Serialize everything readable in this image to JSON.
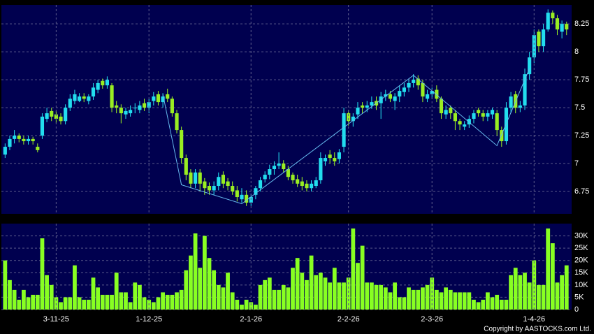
{
  "chart_data": [
    {
      "type": "candlestick",
      "up_color": "#22ddee",
      "down_color": "#99ee22",
      "open": [
        7.08,
        7.15,
        7.22,
        7.25,
        7.22,
        7.2,
        7.22,
        7.15,
        7.25,
        7.4,
        7.47,
        7.44,
        7.42,
        7.38,
        7.5,
        7.56,
        7.56,
        7.6,
        7.56,
        7.6,
        7.66,
        7.74,
        7.7,
        7.7,
        7.52,
        7.5,
        7.44,
        7.45,
        7.5,
        7.48,
        7.54,
        7.5,
        7.56,
        7.62,
        7.55,
        7.62,
        7.58,
        7.45,
        7.3,
        7.05,
        6.92,
        6.82,
        6.92,
        6.84,
        6.8,
        6.76,
        6.8,
        6.9,
        6.84,
        6.8,
        6.76,
        6.68,
        6.72,
        6.65,
        6.72,
        6.78,
        6.86,
        6.9,
        6.95,
        6.98,
        7.0,
        6.95,
        6.9,
        6.86,
        6.84,
        6.82,
        6.78,
        6.8,
        6.85,
        7.02,
        7.08,
        7.05,
        7.04,
        7.15,
        7.45,
        7.38,
        7.44,
        7.52,
        7.5,
        7.52,
        7.56,
        7.54,
        7.6,
        7.62,
        7.56,
        7.6,
        7.64,
        7.68,
        7.72,
        7.76,
        7.72,
        7.58,
        7.62,
        7.66,
        7.58,
        7.44,
        7.5,
        7.45,
        7.38,
        7.33,
        7.35,
        7.4,
        7.48,
        7.45,
        7.42,
        7.44,
        7.45,
        7.3,
        7.2,
        7.5,
        7.62,
        7.5,
        7.52,
        7.8,
        7.95,
        8.18,
        8.05,
        8.2,
        8.35,
        8.3,
        8.18,
        8.25
      ],
      "high": [
        7.18,
        7.25,
        7.3,
        7.27,
        7.25,
        7.25,
        7.24,
        7.18,
        7.45,
        7.5,
        7.5,
        7.47,
        7.45,
        7.53,
        7.62,
        7.66,
        7.63,
        7.63,
        7.62,
        7.72,
        7.75,
        7.76,
        7.78,
        7.72,
        7.56,
        7.53,
        7.5,
        7.52,
        7.54,
        7.56,
        7.58,
        7.58,
        7.64,
        7.65,
        7.63,
        7.67,
        7.6,
        7.48,
        7.33,
        7.08,
        6.95,
        6.95,
        6.95,
        6.87,
        6.83,
        6.84,
        6.92,
        6.93,
        6.87,
        6.84,
        6.8,
        6.78,
        6.76,
        6.73,
        6.8,
        6.88,
        6.93,
        6.99,
        7.02,
        7.1,
        7.03,
        6.98,
        6.92,
        6.9,
        6.88,
        6.85,
        6.85,
        6.88,
        7.1,
        7.08,
        7.12,
        7.1,
        7.13,
        7.5,
        7.48,
        7.45,
        7.55,
        7.55,
        7.56,
        7.6,
        7.6,
        7.64,
        7.66,
        7.65,
        7.63,
        7.7,
        7.72,
        7.75,
        7.8,
        7.79,
        7.75,
        7.66,
        7.68,
        7.7,
        7.6,
        7.52,
        7.52,
        7.48,
        7.4,
        7.38,
        7.43,
        7.48,
        7.5,
        7.48,
        7.48,
        7.5,
        7.48,
        7.33,
        7.55,
        7.64,
        7.65,
        7.56,
        7.85,
        8.0,
        8.2,
        8.2,
        8.25,
        8.38,
        8.37,
        8.33,
        8.28,
        8.27
      ],
      "low": [
        7.05,
        7.12,
        7.18,
        7.19,
        7.17,
        7.17,
        7.17,
        7.1,
        7.22,
        7.37,
        7.38,
        7.36,
        7.35,
        7.35,
        7.47,
        7.53,
        7.55,
        7.55,
        7.53,
        7.57,
        7.63,
        7.67,
        7.67,
        7.46,
        7.45,
        7.36,
        7.4,
        7.42,
        7.45,
        7.45,
        7.47,
        7.45,
        7.52,
        7.52,
        7.5,
        7.55,
        7.42,
        7.27,
        7.0,
        6.85,
        6.78,
        6.78,
        6.75,
        6.72,
        6.72,
        6.72,
        6.76,
        6.78,
        6.76,
        6.72,
        6.66,
        6.65,
        6.62,
        6.62,
        6.68,
        6.75,
        6.83,
        6.86,
        6.9,
        6.95,
        6.92,
        6.85,
        6.82,
        6.79,
        6.76,
        6.75,
        6.75,
        6.78,
        6.82,
        6.98,
        7.0,
        6.98,
        7.0,
        7.1,
        7.34,
        7.33,
        7.4,
        7.45,
        7.46,
        7.49,
        7.48,
        7.4,
        7.56,
        7.55,
        7.48,
        7.55,
        7.6,
        7.64,
        7.68,
        7.66,
        7.55,
        7.55,
        7.58,
        7.55,
        7.4,
        7.4,
        7.4,
        7.3,
        7.3,
        7.3,
        7.32,
        7.36,
        7.42,
        7.38,
        7.38,
        7.4,
        7.25,
        7.15,
        7.17,
        7.45,
        7.45,
        7.46,
        7.48,
        7.75,
        7.9,
        8.0,
        8.0,
        8.18,
        8.25,
        8.15,
        8.12,
        8.15
      ],
      "close": [
        7.15,
        7.22,
        7.25,
        7.22,
        7.2,
        7.22,
        7.2,
        7.12,
        7.42,
        7.45,
        7.42,
        7.4,
        7.38,
        7.5,
        7.58,
        7.62,
        7.6,
        7.58,
        7.6,
        7.68,
        7.72,
        7.7,
        7.75,
        7.5,
        7.5,
        7.45,
        7.47,
        7.48,
        7.5,
        7.52,
        7.5,
        7.55,
        7.6,
        7.55,
        7.6,
        7.58,
        7.45,
        7.3,
        7.05,
        6.9,
        6.82,
        6.92,
        6.82,
        6.78,
        6.76,
        6.8,
        6.88,
        6.82,
        6.8,
        6.75,
        6.7,
        6.72,
        6.65,
        6.7,
        6.78,
        6.85,
        6.9,
        6.95,
        6.98,
        7.0,
        6.95,
        6.88,
        6.85,
        6.82,
        6.8,
        6.78,
        6.82,
        6.85,
        7.05,
        7.05,
        7.05,
        7.02,
        7.1,
        7.45,
        7.38,
        7.42,
        7.5,
        7.5,
        7.52,
        7.55,
        7.52,
        7.6,
        7.62,
        7.58,
        7.6,
        7.65,
        7.68,
        7.72,
        7.75,
        7.7,
        7.6,
        7.62,
        7.65,
        7.58,
        7.45,
        7.48,
        7.45,
        7.38,
        7.35,
        7.35,
        7.4,
        7.45,
        7.45,
        7.42,
        7.45,
        7.48,
        7.3,
        7.2,
        7.5,
        7.6,
        7.5,
        7.52,
        7.8,
        7.95,
        8.15,
        8.05,
        8.2,
        8.35,
        8.3,
        8.2,
        8.25,
        8.2
      ],
      "line_overlay": {
        "x": [
          34,
          38,
          51,
          88,
          106,
          113
        ],
        "values": [
          7.62,
          6.81,
          6.64,
          7.79,
          7.16,
          7.85
        ],
        "color": "#66bbee"
      },
      "ylim": [
        6.55,
        8.42
      ],
      "yticks": [
        6.75,
        7,
        7.25,
        7.5,
        7.75,
        8,
        8.25
      ],
      "grid": true
    },
    {
      "type": "bar",
      "color": "#88ff22",
      "categories": [
        null,
        null,
        null,
        null,
        null,
        null,
        null,
        null,
        null,
        null,
        null,
        "3-11-25",
        null,
        null,
        null,
        null,
        null,
        null,
        null,
        null,
        null,
        null,
        null,
        null,
        null,
        null,
        null,
        null,
        null,
        null,
        null,
        "1-12-25",
        null,
        null,
        null,
        null,
        null,
        null,
        null,
        null,
        null,
        null,
        null,
        null,
        null,
        null,
        null,
        null,
        null,
        null,
        null,
        null,
        null,
        "2-1-26",
        null,
        null,
        null,
        null,
        null,
        null,
        null,
        null,
        null,
        null,
        null,
        null,
        null,
        null,
        null,
        null,
        null,
        null,
        null,
        null,
        "2-2-26",
        null,
        null,
        null,
        null,
        null,
        null,
        null,
        null,
        null,
        null,
        null,
        null,
        null,
        null,
        null,
        null,
        null,
        "2-3-26",
        null,
        null,
        null,
        null,
        null,
        null,
        null,
        null,
        null,
        null,
        null,
        null,
        null,
        null,
        null,
        null,
        null,
        null,
        null,
        null,
        null,
        "1-4-26",
        null,
        null,
        null,
        null,
        null,
        null,
        null
      ],
      "values": [
        20000,
        12000,
        8000,
        4000,
        8000,
        5000,
        6000,
        6000,
        29000,
        14000,
        10000,
        5000,
        3000,
        5000,
        5000,
        18000,
        5000,
        4000,
        4000,
        13000,
        9000,
        6000,
        6000,
        6000,
        15000,
        7000,
        7000,
        3000,
        11000,
        10000,
        5000,
        4000,
        3000,
        5000,
        7000,
        6000,
        6000,
        7000,
        8000,
        16000,
        22000,
        31000,
        17000,
        30000,
        21000,
        16000,
        10000,
        9000,
        15000,
        7000,
        4000,
        2000,
        4000,
        3000,
        2000,
        10000,
        12000,
        13000,
        8000,
        8000,
        10000,
        9000,
        17000,
        21000,
        15000,
        12000,
        22000,
        14000,
        15000,
        13000,
        11000,
        17000,
        11000,
        11000,
        13000,
        33000,
        19000,
        26000,
        11000,
        11000,
        10000,
        10000,
        9000,
        7000,
        11000,
        5000,
        5000,
        9000,
        8000,
        8000,
        9000,
        10000,
        13000,
        8000,
        7000,
        9000,
        8000,
        7000,
        7000,
        7000,
        7000,
        4000,
        3000,
        4000,
        7000,
        5000,
        6000,
        4000,
        4000,
        14000,
        17000,
        14000,
        15000,
        11000,
        20000,
        10000,
        10000,
        33000,
        27000,
        11000,
        14000,
        18000
      ],
      "ylim": [
        0,
        35000
      ],
      "yticks": [
        0,
        {
          "value": 5000,
          "label": "5K"
        },
        {
          "value": 10000,
          "label": "10K"
        },
        {
          "value": 15000,
          "label": "15K"
        },
        {
          "value": 20000,
          "label": "20K"
        },
        {
          "value": 25000,
          "label": "25K"
        },
        {
          "value": 30000,
          "label": "30K"
        }
      ],
      "grid": true,
      "source": "Copyright by AASTOCKS.com Ltd."
    }
  ]
}
